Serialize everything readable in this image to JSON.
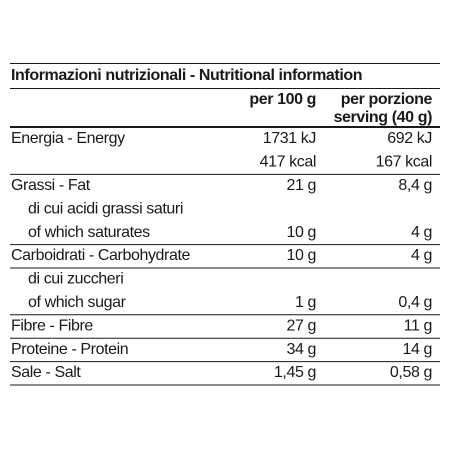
{
  "table": {
    "title": "Informazioni nutrizionali - Nutritional information",
    "header": {
      "per_100g": "per 100 g",
      "per_serving": [
        "per porzione",
        "serving (40 g)"
      ]
    },
    "sections": [
      {
        "rows": [
          {
            "label": "Energia - Energy",
            "per_100g": "1731 kJ",
            "per_serving": "692 kJ"
          },
          {
            "per_100g": "417 kcal",
            "per_serving": "167 kcal"
          }
        ]
      },
      {
        "rows": [
          {
            "label": "Grassi - Fat",
            "per_100g": "21 g",
            "per_serving": "8,4 g"
          },
          {
            "label": "di cui acidi grassi saturi",
            "indent": true
          },
          {
            "label": "of which saturates",
            "indent": true,
            "per_100g": "10 g",
            "per_serving": "4 g"
          }
        ]
      },
      {
        "rows": [
          {
            "label": "Carboidrati - Carbohydrate",
            "per_100g": "10 g",
            "per_serving": "4 g"
          }
        ]
      },
      {
        "rows": [
          {
            "label": "di cui zuccheri",
            "indent": true
          },
          {
            "label": "of which sugar",
            "indent": true,
            "per_100g": "1 g",
            "per_serving": "0,4 g"
          }
        ]
      },
      {
        "rows": [
          {
            "label": "Fibre - Fibre",
            "per_100g": "27 g",
            "per_serving": "11 g"
          }
        ]
      },
      {
        "rows": [
          {
            "label": "Proteine - Protein",
            "per_100g": "34 g",
            "per_serving": "14 g"
          }
        ]
      },
      {
        "rows": [
          {
            "label": "Sale - Salt",
            "per_100g": "1,45 g",
            "per_serving": "0,58 g"
          }
        ]
      }
    ]
  }
}
